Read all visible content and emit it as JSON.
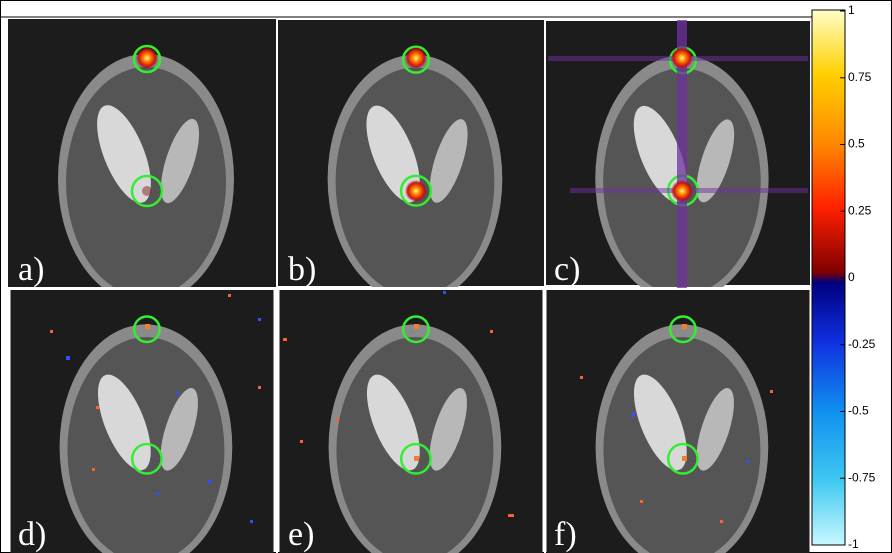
{
  "panels": [
    {
      "label": "a)"
    },
    {
      "label": "b)"
    },
    {
      "label": "c)"
    },
    {
      "label": "d)"
    },
    {
      "label": "e)"
    },
    {
      "label": "f)"
    }
  ],
  "colorbar": {
    "ticks": [
      1,
      0.75,
      0.5,
      0.25,
      0,
      -0.25,
      -0.5,
      -0.75,
      -1
    ]
  }
}
